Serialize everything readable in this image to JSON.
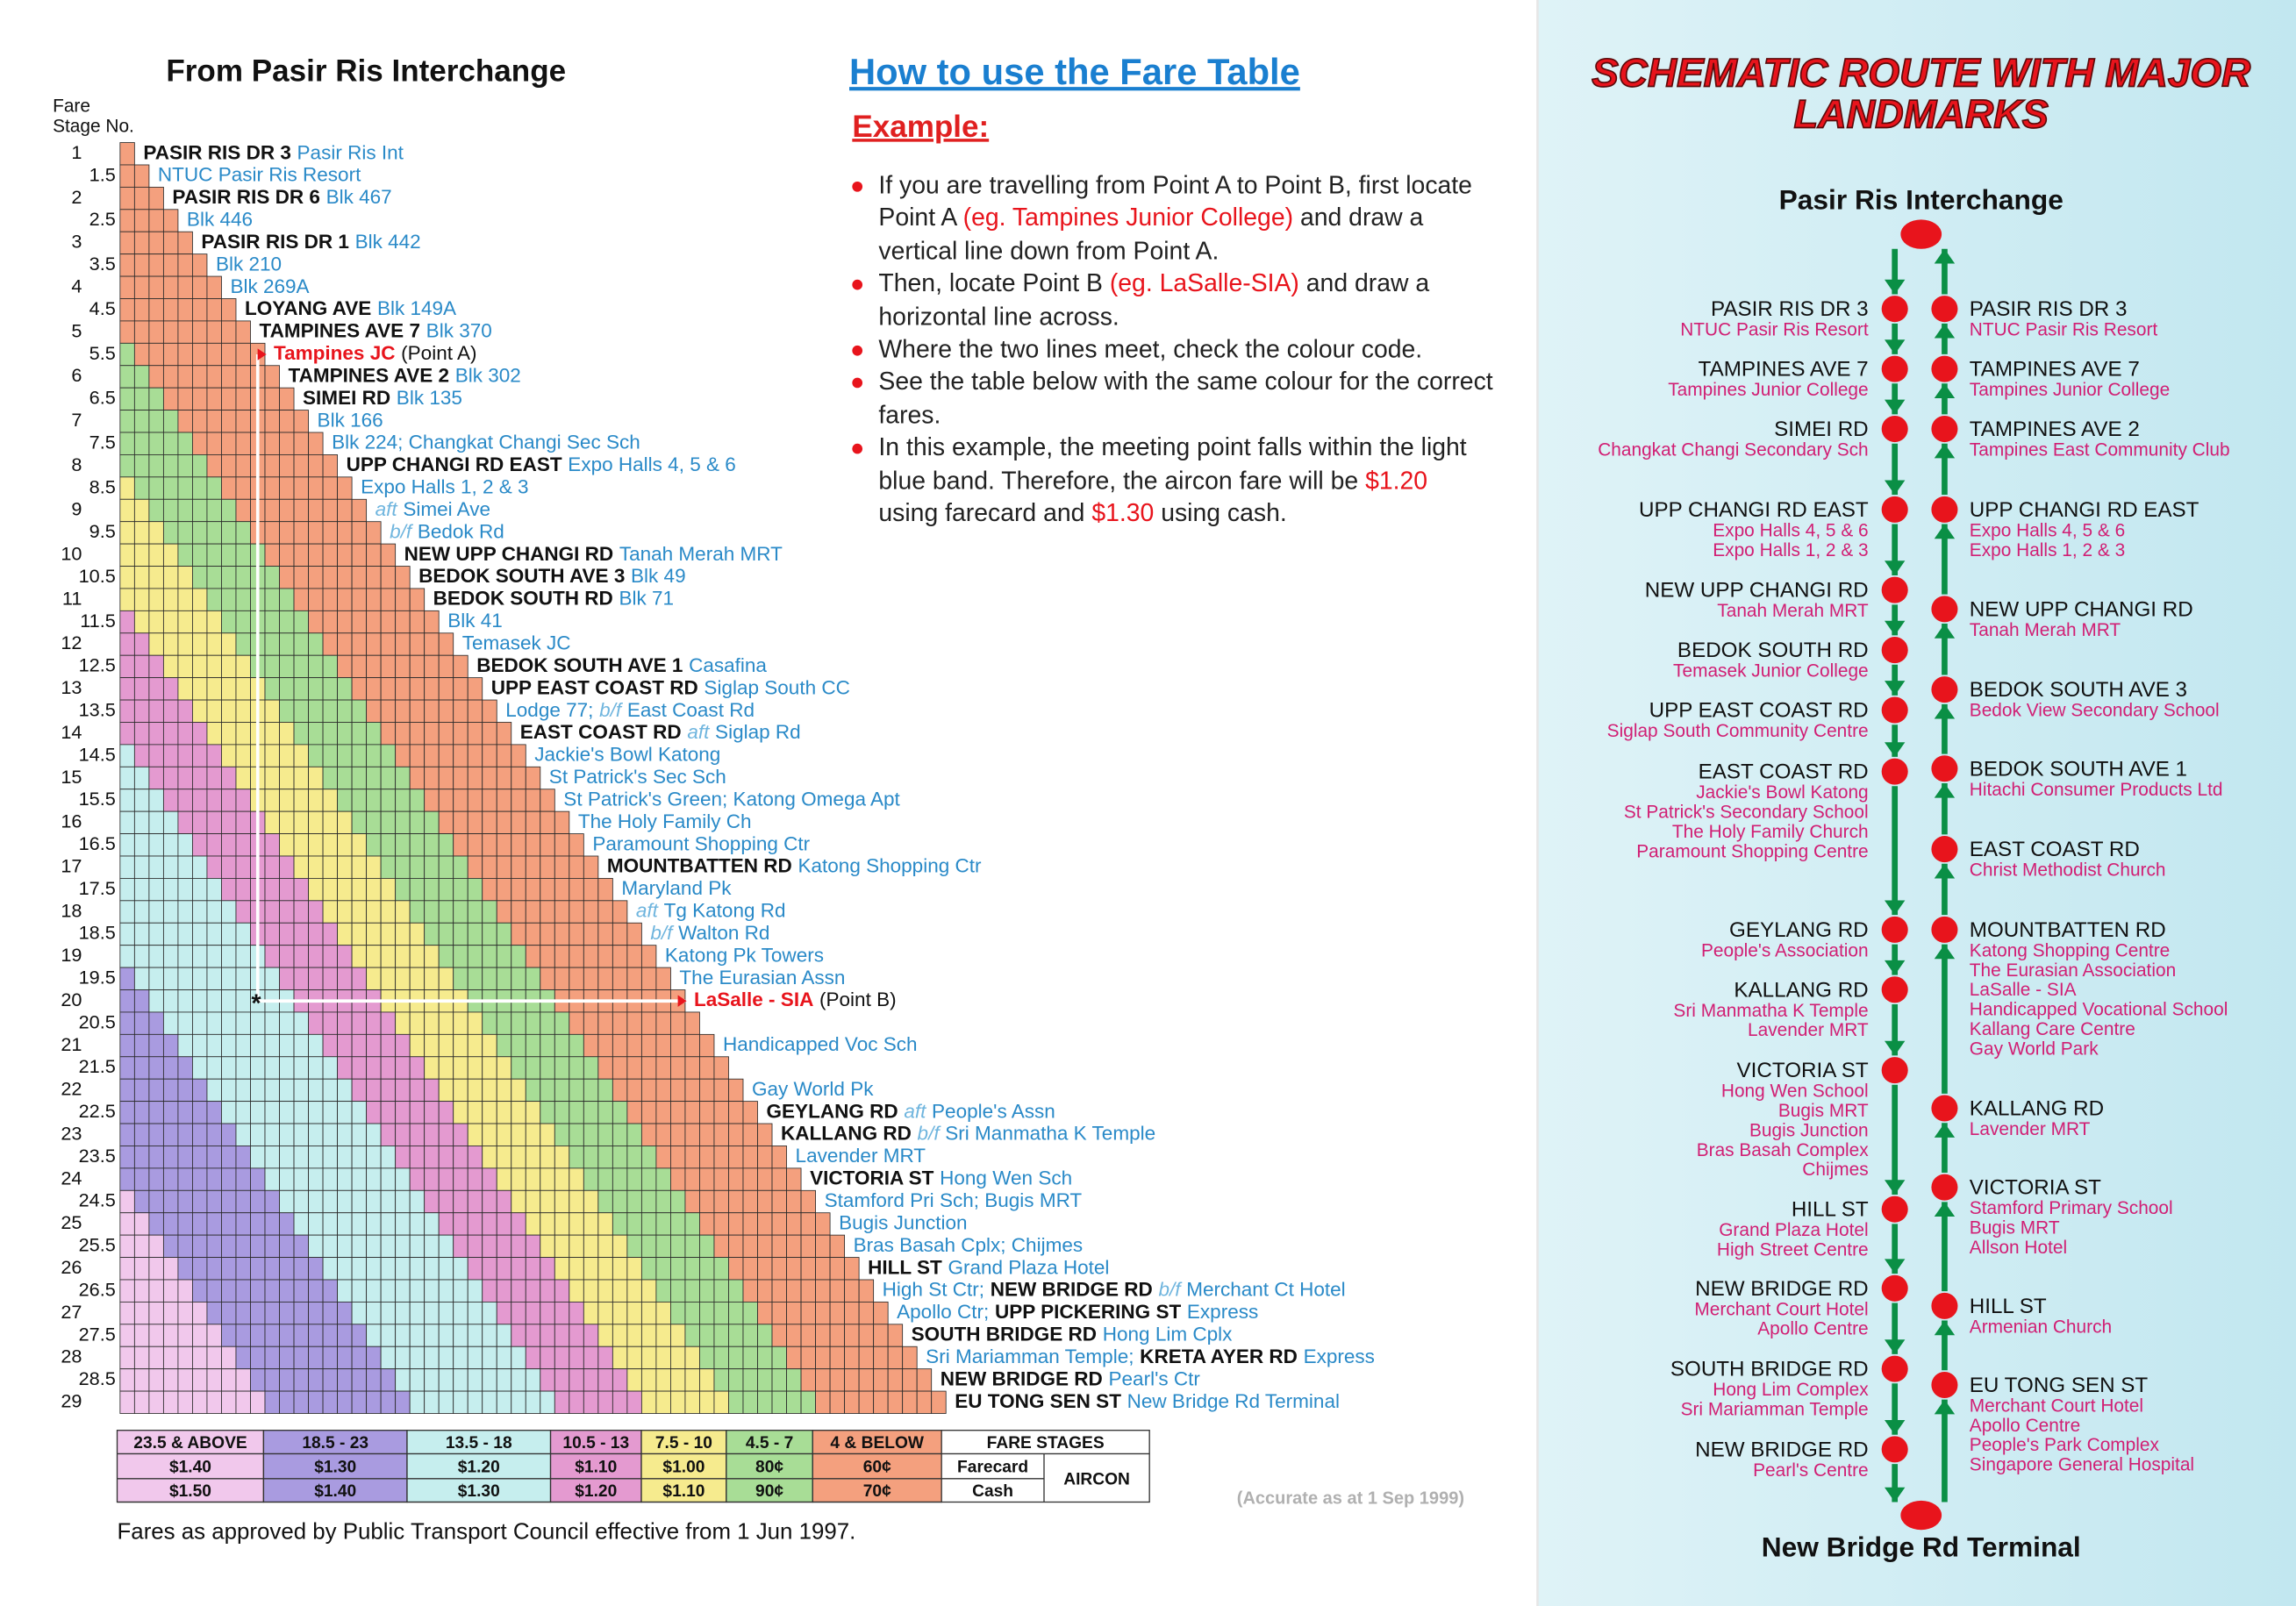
{
  "fare_table": {
    "title": "From Pasir Ris Interchange",
    "stage_heading": [
      "Fare",
      "Stage No."
    ],
    "rows": [
      {
        "stage": 1,
        "label": [
          {
            "text": "PASIR RIS DR 3",
            "style": "bold"
          },
          {
            "text": "Pasir Ris Int",
            "style": "blue"
          }
        ]
      },
      {
        "stage": 1.5,
        "label": [
          {
            "text": "NTUC Pasir Ris Resort",
            "style": "blue"
          }
        ]
      },
      {
        "stage": 2,
        "label": [
          {
            "text": "PASIR RIS DR 6",
            "style": "bold"
          },
          {
            "text": "Blk 467",
            "style": "blue"
          }
        ]
      },
      {
        "stage": 2.5,
        "label": [
          {
            "text": "Blk 446",
            "style": "blue"
          }
        ]
      },
      {
        "stage": 3,
        "label": [
          {
            "text": "PASIR RIS DR 1",
            "style": "bold"
          },
          {
            "text": "Blk 442",
            "style": "blue"
          }
        ]
      },
      {
        "stage": 3.5,
        "label": [
          {
            "text": "Blk 210",
            "style": "blue"
          }
        ]
      },
      {
        "stage": 4,
        "label": [
          {
            "text": "Blk 269A",
            "style": "blue"
          }
        ]
      },
      {
        "stage": 4.5,
        "label": [
          {
            "text": "LOYANG AVE",
            "style": "bold"
          },
          {
            "text": "Blk 149A",
            "style": "blue"
          }
        ]
      },
      {
        "stage": 5,
        "label": [
          {
            "text": "TAMPINES AVE 7",
            "style": "bold"
          },
          {
            "text": "Blk 370",
            "style": "blue"
          }
        ]
      },
      {
        "stage": 5.5,
        "label": [
          {
            "text": "Tampines JC",
            "style": "red"
          },
          {
            "text": "(Point A)",
            "style": "plain"
          }
        ]
      },
      {
        "stage": 6,
        "label": [
          {
            "text": "TAMPINES AVE 2",
            "style": "bold"
          },
          {
            "text": "Blk 302",
            "style": "blue"
          }
        ]
      },
      {
        "stage": 6.5,
        "label": [
          {
            "text": "SIMEI RD",
            "style": "bold"
          },
          {
            "text": "Blk 135",
            "style": "blue"
          }
        ]
      },
      {
        "stage": 7,
        "label": [
          {
            "text": "Blk 166",
            "style": "blue"
          }
        ]
      },
      {
        "stage": 7.5,
        "label": [
          {
            "text": "Blk 224;  Changkat Changi Sec Sch",
            "style": "blue"
          }
        ]
      },
      {
        "stage": 8,
        "label": [
          {
            "text": "UPP CHANGI RD EAST",
            "style": "bold"
          },
          {
            "text": "Expo Halls 4, 5 & 6",
            "style": "blue"
          }
        ]
      },
      {
        "stage": 8.5,
        "label": [
          {
            "text": "Expo Halls 1, 2 & 3",
            "style": "blue"
          }
        ]
      },
      {
        "stage": 9,
        "label": [
          {
            "text": "aft",
            "style": "italic"
          },
          {
            "text": "Simei Ave",
            "style": "blue"
          }
        ]
      },
      {
        "stage": 9.5,
        "label": [
          {
            "text": "b/f",
            "style": "italic"
          },
          {
            "text": "Bedok Rd",
            "style": "blue"
          }
        ]
      },
      {
        "stage": 10,
        "label": [
          {
            "text": "NEW UPP CHANGI RD",
            "style": "bold"
          },
          {
            "text": "Tanah Merah MRT",
            "style": "blue"
          }
        ]
      },
      {
        "stage": 10.5,
        "label": [
          {
            "text": "BEDOK SOUTH AVE 3",
            "style": "bold"
          },
          {
            "text": "Blk 49",
            "style": "blue"
          }
        ]
      },
      {
        "stage": 11,
        "label": [
          {
            "text": "BEDOK SOUTH RD",
            "style": "bold"
          },
          {
            "text": "Blk 71",
            "style": "blue"
          }
        ]
      },
      {
        "stage": 11.5,
        "label": [
          {
            "text": "Blk 41",
            "style": "blue"
          }
        ]
      },
      {
        "stage": 12,
        "label": [
          {
            "text": "Temasek JC",
            "style": "blue"
          }
        ]
      },
      {
        "stage": 12.5,
        "label": [
          {
            "text": "BEDOK SOUTH AVE 1",
            "style": "bold"
          },
          {
            "text": "Casafina",
            "style": "blue"
          }
        ]
      },
      {
        "stage": 13,
        "label": [
          {
            "text": "UPP EAST COAST RD",
            "style": "bold"
          },
          {
            "text": "Siglap South CC",
            "style": "blue"
          }
        ]
      },
      {
        "stage": 13.5,
        "label": [
          {
            "text": "Lodge 77;",
            "style": "blue"
          },
          {
            "text": "b/f",
            "style": "italic"
          },
          {
            "text": "East Coast Rd",
            "style": "blue"
          }
        ]
      },
      {
        "stage": 14,
        "label": [
          {
            "text": "EAST COAST RD",
            "style": "bold"
          },
          {
            "text": "aft",
            "style": "italic"
          },
          {
            "text": "Siglap Rd",
            "style": "blue"
          }
        ]
      },
      {
        "stage": 14.5,
        "label": [
          {
            "text": "Jackie's Bowl Katong",
            "style": "blue"
          }
        ]
      },
      {
        "stage": 15,
        "label": [
          {
            "text": "St Patrick's Sec Sch",
            "style": "blue"
          }
        ]
      },
      {
        "stage": 15.5,
        "label": [
          {
            "text": "St Patrick's Green;  Katong Omega Apt",
            "style": "blue"
          }
        ]
      },
      {
        "stage": 16,
        "label": [
          {
            "text": "The Holy Family Ch",
            "style": "blue"
          }
        ]
      },
      {
        "stage": 16.5,
        "label": [
          {
            "text": "Paramount Shopping Ctr",
            "style": "blue"
          }
        ]
      },
      {
        "stage": 17,
        "label": [
          {
            "text": "MOUNTBATTEN RD",
            "style": "bold"
          },
          {
            "text": "Katong Shopping Ctr",
            "style": "blue"
          }
        ]
      },
      {
        "stage": 17.5,
        "label": [
          {
            "text": "Maryland Pk",
            "style": "blue"
          }
        ]
      },
      {
        "stage": 18,
        "label": [
          {
            "text": "aft",
            "style": "italic"
          },
          {
            "text": "Tg Katong Rd",
            "style": "blue"
          }
        ]
      },
      {
        "stage": 18.5,
        "label": [
          {
            "text": "b/f",
            "style": "italic"
          },
          {
            "text": "Walton Rd",
            "style": "blue"
          }
        ]
      },
      {
        "stage": 19,
        "label": [
          {
            "text": "Katong Pk Towers",
            "style": "blue"
          }
        ]
      },
      {
        "stage": 19.5,
        "label": [
          {
            "text": "The Eurasian Assn",
            "style": "blue"
          }
        ]
      },
      {
        "stage": 20,
        "label": [
          {
            "text": "LaSalle - SIA",
            "style": "red"
          },
          {
            "text": "(Point B)",
            "style": "plain"
          }
        ]
      },
      {
        "stage": 20.5,
        "label": []
      },
      {
        "stage": 21,
        "label": [
          {
            "text": "Handicapped Voc Sch",
            "style": "blue"
          }
        ]
      },
      {
        "stage": 21.5,
        "label": []
      },
      {
        "stage": 22,
        "label": [
          {
            "text": "Gay World Pk",
            "style": "blue"
          }
        ]
      },
      {
        "stage": 22.5,
        "label": [
          {
            "text": "GEYLANG RD",
            "style": "bold"
          },
          {
            "text": "aft",
            "style": "italic"
          },
          {
            "text": "People's Assn",
            "style": "blue"
          }
        ]
      },
      {
        "stage": 23,
        "label": [
          {
            "text": "KALLANG RD",
            "style": "bold"
          },
          {
            "text": "b/f",
            "style": "italic"
          },
          {
            "text": "Sri Manmatha K Temple",
            "style": "blue"
          }
        ]
      },
      {
        "stage": 23.5,
        "label": [
          {
            "text": "Lavender MRT",
            "style": "blue"
          }
        ]
      },
      {
        "stage": 24,
        "label": [
          {
            "text": "VICTORIA ST",
            "style": "bold"
          },
          {
            "text": "Hong Wen Sch",
            "style": "blue"
          }
        ]
      },
      {
        "stage": 24.5,
        "label": [
          {
            "text": "Stamford Pri Sch;  Bugis MRT",
            "style": "blue"
          }
        ]
      },
      {
        "stage": 25,
        "label": [
          {
            "text": "Bugis Junction",
            "style": "blue"
          }
        ]
      },
      {
        "stage": 25.5,
        "label": [
          {
            "text": "Bras Basah Cplx;  Chijmes",
            "style": "blue"
          }
        ]
      },
      {
        "stage": 26,
        "label": [
          {
            "text": "HILL ST",
            "style": "bold"
          },
          {
            "text": "Grand Plaza Hotel",
            "style": "blue"
          }
        ]
      },
      {
        "stage": 26.5,
        "label": [
          {
            "text": "High St Ctr;",
            "style": "blue"
          },
          {
            "text": "NEW BRIDGE RD",
            "style": "bold"
          },
          {
            "text": "b/f",
            "style": "italic"
          },
          {
            "text": "Merchant Ct Hotel",
            "style": "blue"
          }
        ]
      },
      {
        "stage": 27,
        "label": [
          {
            "text": "Apollo Ctr;",
            "style": "blue"
          },
          {
            "text": "UPP PICKERING ST",
            "style": "bold"
          },
          {
            "text": "Express",
            "style": "blue"
          }
        ]
      },
      {
        "stage": 27.5,
        "label": [
          {
            "text": "SOUTH BRIDGE RD",
            "style": "bold"
          },
          {
            "text": "Hong Lim Cplx",
            "style": "blue"
          }
        ]
      },
      {
        "stage": 28,
        "label": [
          {
            "text": "Sri Mariamman Temple;",
            "style": "blue"
          },
          {
            "text": "KRETA AYER RD",
            "style": "bold"
          },
          {
            "text": "Express",
            "style": "blue"
          }
        ]
      },
      {
        "stage": 28.5,
        "label": [
          {
            "text": "NEW BRIDGE RD",
            "style": "bold"
          },
          {
            "text": "Pearl's Ctr",
            "style": "blue"
          }
        ]
      },
      {
        "stage": 29,
        "label": [
          {
            "text": "EU TONG SEN ST",
            "style": "bold"
          },
          {
            "text": "New Bridge Rd Terminal",
            "style": "blue"
          }
        ]
      }
    ],
    "marker": "*",
    "legend": {
      "bands": [
        {
          "range": "23.5 & ABOVE",
          "farecard": "$1.40",
          "cash": "$1.50",
          "color": "#f1c8ec"
        },
        {
          "range": "18.5 - 23",
          "farecard": "$1.30",
          "cash": "$1.40",
          "color": "#a99be0"
        },
        {
          "range": "13.5 - 18",
          "farecard": "$1.20",
          "cash": "$1.30",
          "color": "#c6eeee"
        },
        {
          "range": "10.5 - 13",
          "farecard": "$1.10",
          "cash": "$1.20",
          "color": "#e49ad0"
        },
        {
          "range": "7.5 - 10",
          "farecard": "$1.00",
          "cash": "$1.10",
          "color": "#f6eb8e"
        },
        {
          "range": "4.5 - 7",
          "farecard": "80¢",
          "cash": "90¢",
          "color": "#a8dd96"
        },
        {
          "range": "4 & BELOW",
          "farecard": "60¢",
          "cash": "70¢",
          "color": "#f4a07e"
        }
      ],
      "fare_stages": "FARE STAGES",
      "farecard": "Farecard",
      "cash": "Cash",
      "aircon": "AIRCON"
    },
    "footnote": "Fares as approved by Public Transport Council effective from 1 Jun 1997.",
    "accuracy": "(Accurate as at 1 Sep 1999)"
  },
  "instructions": {
    "title": "How to use the Fare Table",
    "example": "Example:",
    "bullets": [
      [
        {
          "text": "If you are travelling from Point A to Point B, first locate Point A ",
          "style": "plain"
        },
        {
          "text": "(eg. Tampines Junior College)",
          "style": "red"
        },
        {
          "text": " and draw a vertical line down from Point A.",
          "style": "plain"
        }
      ],
      [
        {
          "text": "Then, locate Point B ",
          "style": "plain"
        },
        {
          "text": "(eg. LaSalle-SIA)",
          "style": "red"
        },
        {
          "text": " and draw a horizontal line across.",
          "style": "plain"
        }
      ],
      [
        {
          "text": "Where the two lines meet, check the colour code.",
          "style": "plain"
        }
      ],
      [
        {
          "text": "See the table below with the same colour for the correct fares.",
          "style": "plain"
        }
      ],
      [
        {
          "text": "In this example, the meeting point falls within the light blue band.  Therefore, the aircon fare will be ",
          "style": "plain"
        },
        {
          "text": "$1.20",
          "style": "red"
        },
        {
          "text": " using farecard and ",
          "style": "plain"
        },
        {
          "text": "$1.30",
          "style": "red"
        },
        {
          "text": " using cash.",
          "style": "plain"
        }
      ]
    ]
  },
  "route": {
    "title": [
      "SCHEMATIC ROUTE WITH MAJOR",
      "LANDMARKS"
    ],
    "start": "Pasir Ris Interchange",
    "end": "New Bridge Rd Terminal",
    "outbound": [
      {
        "name": "PASIR RIS DR 3",
        "landmarks": [
          "NTUC Pasir Ris Resort"
        ]
      },
      {
        "name": "TAMPINES AVE 7",
        "landmarks": [
          "Tampines Junior College"
        ]
      },
      {
        "name": "SIMEI RD",
        "landmarks": [
          "Changkat Changi Secondary Sch"
        ]
      },
      {
        "name": "UPP CHANGI RD EAST",
        "landmarks": [
          "Expo Halls 4, 5 & 6",
          "Expo Halls 1, 2 & 3"
        ]
      },
      {
        "name": "NEW UPP CHANGI RD",
        "landmarks": [
          "Tanah Merah MRT"
        ]
      },
      {
        "name": "BEDOK SOUTH RD",
        "landmarks": [
          "Temasek Junior College"
        ]
      },
      {
        "name": "UPP EAST COAST RD",
        "landmarks": [
          "Siglap South Community Centre"
        ]
      },
      {
        "name": "EAST COAST RD",
        "landmarks": [
          "Jackie's Bowl Katong",
          "St Patrick's Secondary School",
          "The Holy Family Church",
          "Paramount Shopping Centre"
        ]
      },
      {
        "name": "GEYLANG RD",
        "landmarks": [
          "People's Association"
        ]
      },
      {
        "name": "KALLANG RD",
        "landmarks": [
          "Sri Manmatha K Temple",
          "Lavender MRT"
        ]
      },
      {
        "name": "VICTORIA ST",
        "landmarks": [
          "Hong Wen School",
          "Bugis MRT",
          "Bugis Junction",
          "Bras Basah Complex",
          "Chijmes"
        ]
      },
      {
        "name": "HILL ST",
        "landmarks": [
          "Grand Plaza Hotel",
          "High Street Centre"
        ]
      },
      {
        "name": "NEW BRIDGE RD",
        "landmarks": [
          "Merchant Court Hotel",
          "Apollo Centre"
        ]
      },
      {
        "name": "SOUTH BRIDGE RD",
        "landmarks": [
          "Hong Lim Complex",
          "Sri Mariamman Temple"
        ]
      },
      {
        "name": "NEW BRIDGE RD",
        "landmarks": [
          "Pearl's Centre"
        ]
      }
    ],
    "inbound": [
      {
        "name": "PASIR RIS DR 3",
        "landmarks": [
          "NTUC Pasir Ris Resort"
        ]
      },
      {
        "name": "TAMPINES AVE 7",
        "landmarks": [
          "Tampines Junior College"
        ]
      },
      {
        "name": "TAMPINES AVE 2",
        "landmarks": [
          "Tampines East Community Club"
        ]
      },
      {
        "name": "UPP CHANGI RD EAST",
        "landmarks": [
          "Expo Halls 4, 5 & 6",
          "Expo Halls 1, 2 & 3"
        ]
      },
      {
        "name": "NEW UPP CHANGI RD",
        "landmarks": [
          "Tanah Merah MRT"
        ]
      },
      {
        "name": "BEDOK SOUTH AVE 3",
        "landmarks": [
          "Bedok View Secondary School"
        ]
      },
      {
        "name": "BEDOK SOUTH AVE 1",
        "landmarks": [
          "Hitachi Consumer Products Ltd"
        ]
      },
      {
        "name": "EAST COAST RD",
        "landmarks": [
          "Christ Methodist Church"
        ]
      },
      {
        "name": "MOUNTBATTEN RD",
        "landmarks": [
          "Katong Shopping Centre",
          "The Eurasian Association",
          "LaSalle - SIA",
          "Handicapped Vocational School",
          "Kallang Care Centre",
          "Gay World Park"
        ]
      },
      {
        "name": "KALLANG RD",
        "landmarks": [
          "Lavender MRT"
        ]
      },
      {
        "name": "VICTORIA ST",
        "landmarks": [
          "Stamford Primary School",
          "Bugis MRT",
          "Allson Hotel"
        ]
      },
      {
        "name": "HILL ST",
        "landmarks": [
          "Armenian Church"
        ]
      },
      {
        "name": "EU TONG SEN ST",
        "landmarks": [
          "Merchant Court Hotel",
          "Apollo Centre",
          "People's Park Complex",
          "Singapore General Hospital"
        ]
      }
    ]
  }
}
